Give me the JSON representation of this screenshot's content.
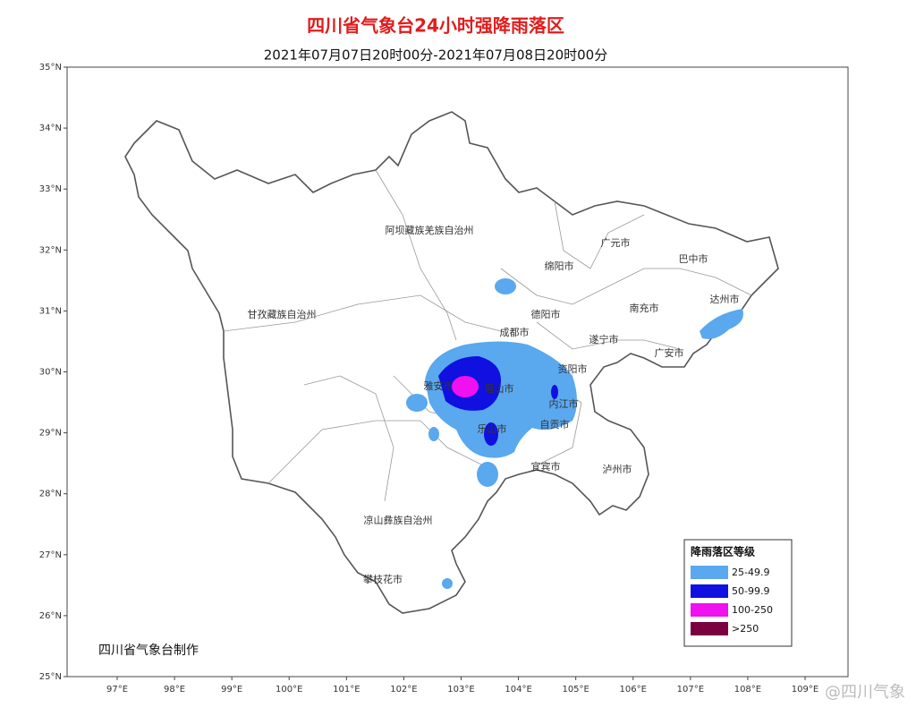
{
  "header": {
    "title": "四川省气象台24小时强降雨落区",
    "subtitle": "2021年07月07日20时00分-2021年07月08日20时00分"
  },
  "axes": {
    "lat_ticks": [
      {
        "value": 35,
        "label": "35°N"
      },
      {
        "value": 34,
        "label": "34°N"
      },
      {
        "value": 33,
        "label": "33°N"
      },
      {
        "value": 32,
        "label": "32°N"
      },
      {
        "value": 31,
        "label": "31°N"
      },
      {
        "value": 30,
        "label": "30°N"
      },
      {
        "value": 29,
        "label": "29°N"
      },
      {
        "value": 28,
        "label": "28°N"
      },
      {
        "value": 27,
        "label": "27°N"
      },
      {
        "value": 26,
        "label": "26°N"
      },
      {
        "value": 25,
        "label": "25°N"
      }
    ],
    "lon_ticks": [
      {
        "value": 97,
        "label": "97°E"
      },
      {
        "value": 98,
        "label": "98°E"
      },
      {
        "value": 99,
        "label": "99°E"
      },
      {
        "value": 100,
        "label": "100°E"
      },
      {
        "value": 101,
        "label": "101°E"
      },
      {
        "value": 102,
        "label": "102°E"
      },
      {
        "value": 103,
        "label": "103°E"
      },
      {
        "value": 104,
        "label": "104°E"
      },
      {
        "value": 105,
        "label": "105°E"
      },
      {
        "value": 106,
        "label": "106°E"
      },
      {
        "value": 107,
        "label": "107°E"
      },
      {
        "value": 108,
        "label": "108°E"
      },
      {
        "value": 109,
        "label": "109°E"
      }
    ]
  },
  "regions": [
    "阿坝藏族羌族自治州",
    "甘孜藏族自治州",
    "凉山彝族自治州",
    "攀枝花市",
    "广元市",
    "巴中市",
    "绵阳市",
    "达州市",
    "德阳市",
    "南充市",
    "成都市",
    "遂宁市",
    "广安市",
    "资阳市",
    "雅安市",
    "眉山市",
    "内江市",
    "自贡市",
    "乐山市",
    "宜宾市",
    "泸州市"
  ],
  "legend": {
    "title": "降雨落区等级",
    "items": [
      {
        "label": "25-49.9",
        "color": "#5aa8ee"
      },
      {
        "label": "50-99.9",
        "color": "#1010e0"
      },
      {
        "label": "100-250",
        "color": "#f010f0"
      },
      {
        "label": ">250",
        "color": "#7a0040"
      }
    ]
  },
  "credit": "四川省气象台制作",
  "watermark": "@四川气象"
}
